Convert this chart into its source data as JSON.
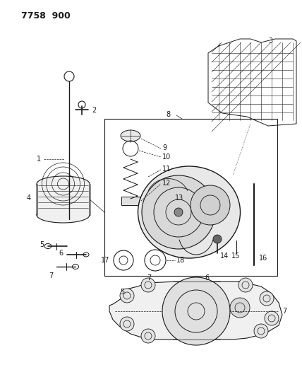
{
  "title": "7758 900",
  "bg_color": "#ffffff",
  "figsize": [
    4.28,
    5.33
  ],
  "dpi": 100,
  "color": "#1a1a1a",
  "lw": 0.7
}
